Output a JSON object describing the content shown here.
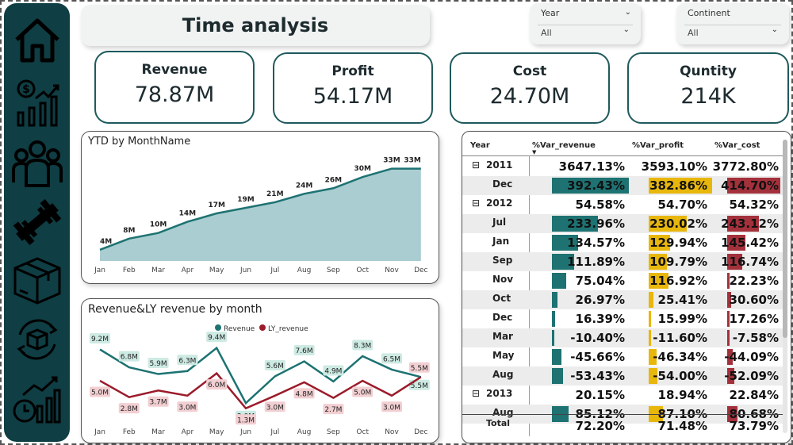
{
  "title": "Time analysis",
  "filters": [
    {
      "label": "Year",
      "value": "All"
    },
    {
      "label": "Continent",
      "value": "All"
    }
  ],
  "kpis": [
    {
      "label": "Revenue",
      "value": "78.87M"
    },
    {
      "label": "Profit",
      "value": "54.17M"
    },
    {
      "label": "Cost",
      "value": "24.70M"
    },
    {
      "label": "Quntity",
      "value": "214K"
    }
  ],
  "sidebar_icons": [
    "home-icon",
    "revenue-growth-icon",
    "customers-icon",
    "fitness-dumbbell-icon",
    "product-box-icon",
    "box-cycle-icon",
    "time-chart-icon"
  ],
  "colors": {
    "sidebar": "#0f3e44",
    "teal": "#1e7272",
    "area": "#a9cdd0",
    "dark_red": "#9b1b2a",
    "gold": "#e8b70c",
    "red": "#a3313b"
  },
  "chart_data": [
    {
      "type": "area",
      "title": "YTD by MonthName",
      "categories": [
        "Jan",
        "Feb",
        "Mar",
        "Apr",
        "May",
        "Jun",
        "Jul",
        "Aug",
        "Sep",
        "Oct",
        "Nov",
        "Dec"
      ],
      "values": [
        4,
        8,
        10,
        14,
        17,
        19,
        21,
        24,
        26,
        30,
        33,
        33
      ],
      "labels": [
        "4M",
        "8M",
        "10M",
        "14M",
        "17M",
        "19M",
        "21M",
        "24M",
        "26M",
        "30M",
        "33M",
        "33M"
      ],
      "ylim": [
        0,
        36
      ],
      "grid": false
    },
    {
      "type": "line",
      "title": "Revenue&LY revenue by month",
      "categories": [
        "Jan",
        "Feb",
        "Mar",
        "Apr",
        "May",
        "Jun",
        "Jul",
        "Aug",
        "Sep",
        "Oct",
        "Nov",
        "Dec"
      ],
      "legend": "top-center",
      "series": [
        {
          "name": "Revenue",
          "color": "#1e7272",
          "values": [
            9.2,
            6.8,
            5.9,
            6.3,
            9.4,
            2.0,
            5.6,
            7.6,
            4.9,
            8.3,
            6.5,
            5.5
          ],
          "labels": [
            "9.2M",
            "6.8M",
            "5.9M",
            "6.3M",
            "9.4M",
            "2.0M",
            "5.6M",
            "7.6M",
            "4.9M",
            "8.3M",
            "6.5M",
            "5.5M"
          ]
        },
        {
          "name": "LY_revenue",
          "color": "#9b1b2a",
          "values": [
            5.0,
            2.8,
            3.7,
            3.0,
            6.0,
            1.3,
            3.0,
            4.8,
            2.7,
            5.0,
            3.0,
            5.5
          ],
          "labels": [
            "5.0M",
            "2.8M",
            "3.7M",
            "3.0M",
            "6.0M",
            "1.3M",
            "3.0M",
            "4.8M",
            "2.7M",
            "5.0M",
            "3.0M",
            "5.5M"
          ]
        }
      ],
      "ylim": [
        0,
        10
      ]
    }
  ],
  "table": {
    "headers": [
      "Year",
      "%Var_revenue",
      "%Var_profit",
      "%Var_cost"
    ],
    "rows": [
      {
        "label": "2011",
        "level": 0,
        "expander": "⊟",
        "values": [
          "3647.13%",
          "3593.10%",
          "3772.80%"
        ],
        "bars": [
          null,
          null,
          null
        ]
      },
      {
        "label": "Dec",
        "level": 1,
        "values": [
          "392.43%",
          "382.86%",
          "414.70%"
        ],
        "bars": [
          1.0,
          1.0,
          1.0
        ]
      },
      {
        "label": "2012",
        "level": 0,
        "expander": "⊟",
        "values": [
          "54.58%",
          "54.70%",
          "54.32%"
        ],
        "bars": [
          null,
          null,
          null
        ]
      },
      {
        "label": "Jul",
        "level": 1,
        "values": [
          "233.96%",
          "230.02%",
          "243.12%"
        ],
        "bars": [
          0.6,
          0.6,
          0.59
        ]
      },
      {
        "label": "Jan",
        "level": 1,
        "values": [
          "134.57%",
          "129.94%",
          "145.42%"
        ],
        "bars": [
          0.34,
          0.34,
          0.35
        ]
      },
      {
        "label": "Sep",
        "level": 1,
        "values": [
          "111.89%",
          "109.79%",
          "116.74%"
        ],
        "bars": [
          0.29,
          0.29,
          0.28
        ]
      },
      {
        "label": "Nov",
        "level": 1,
        "values": [
          "75.04%",
          "116.92%",
          "22.23%"
        ],
        "bars": [
          0.19,
          0.31,
          0.05
        ]
      },
      {
        "label": "Oct",
        "level": 1,
        "values": [
          "26.97%",
          "25.41%",
          "30.60%"
        ],
        "bars": [
          0.07,
          0.07,
          0.07
        ]
      },
      {
        "label": "Dec",
        "level": 1,
        "values": [
          "16.39%",
          "15.99%",
          "17.26%"
        ],
        "bars": [
          0.04,
          0.04,
          0.04
        ]
      },
      {
        "label": "Mar",
        "level": 1,
        "values": [
          "-10.40%",
          "-11.60%",
          "-7.58%"
        ],
        "bars": [
          -0.03,
          -0.03,
          -0.02
        ]
      },
      {
        "label": "May",
        "level": 1,
        "values": [
          "-45.66%",
          "-46.34%",
          "-44.09%"
        ],
        "bars": [
          -0.12,
          -0.12,
          -0.11
        ]
      },
      {
        "label": "Aug",
        "level": 1,
        "values": [
          "-53.43%",
          "-54.00%",
          "-52.09%"
        ],
        "bars": [
          -0.14,
          -0.14,
          -0.13
        ]
      },
      {
        "label": "2013",
        "level": 0,
        "expander": "⊟",
        "values": [
          "20.15%",
          "18.94%",
          "22.84%"
        ],
        "bars": [
          null,
          null,
          null
        ]
      },
      {
        "label": "Aug",
        "level": 1,
        "values": [
          "85.12%",
          "87.10%",
          "80.68%"
        ],
        "bars": [
          0.22,
          0.23,
          0.2
        ]
      }
    ],
    "total": {
      "label": "Total",
      "values": [
        "72.20%",
        "71.48%",
        "73.79%"
      ]
    }
  }
}
